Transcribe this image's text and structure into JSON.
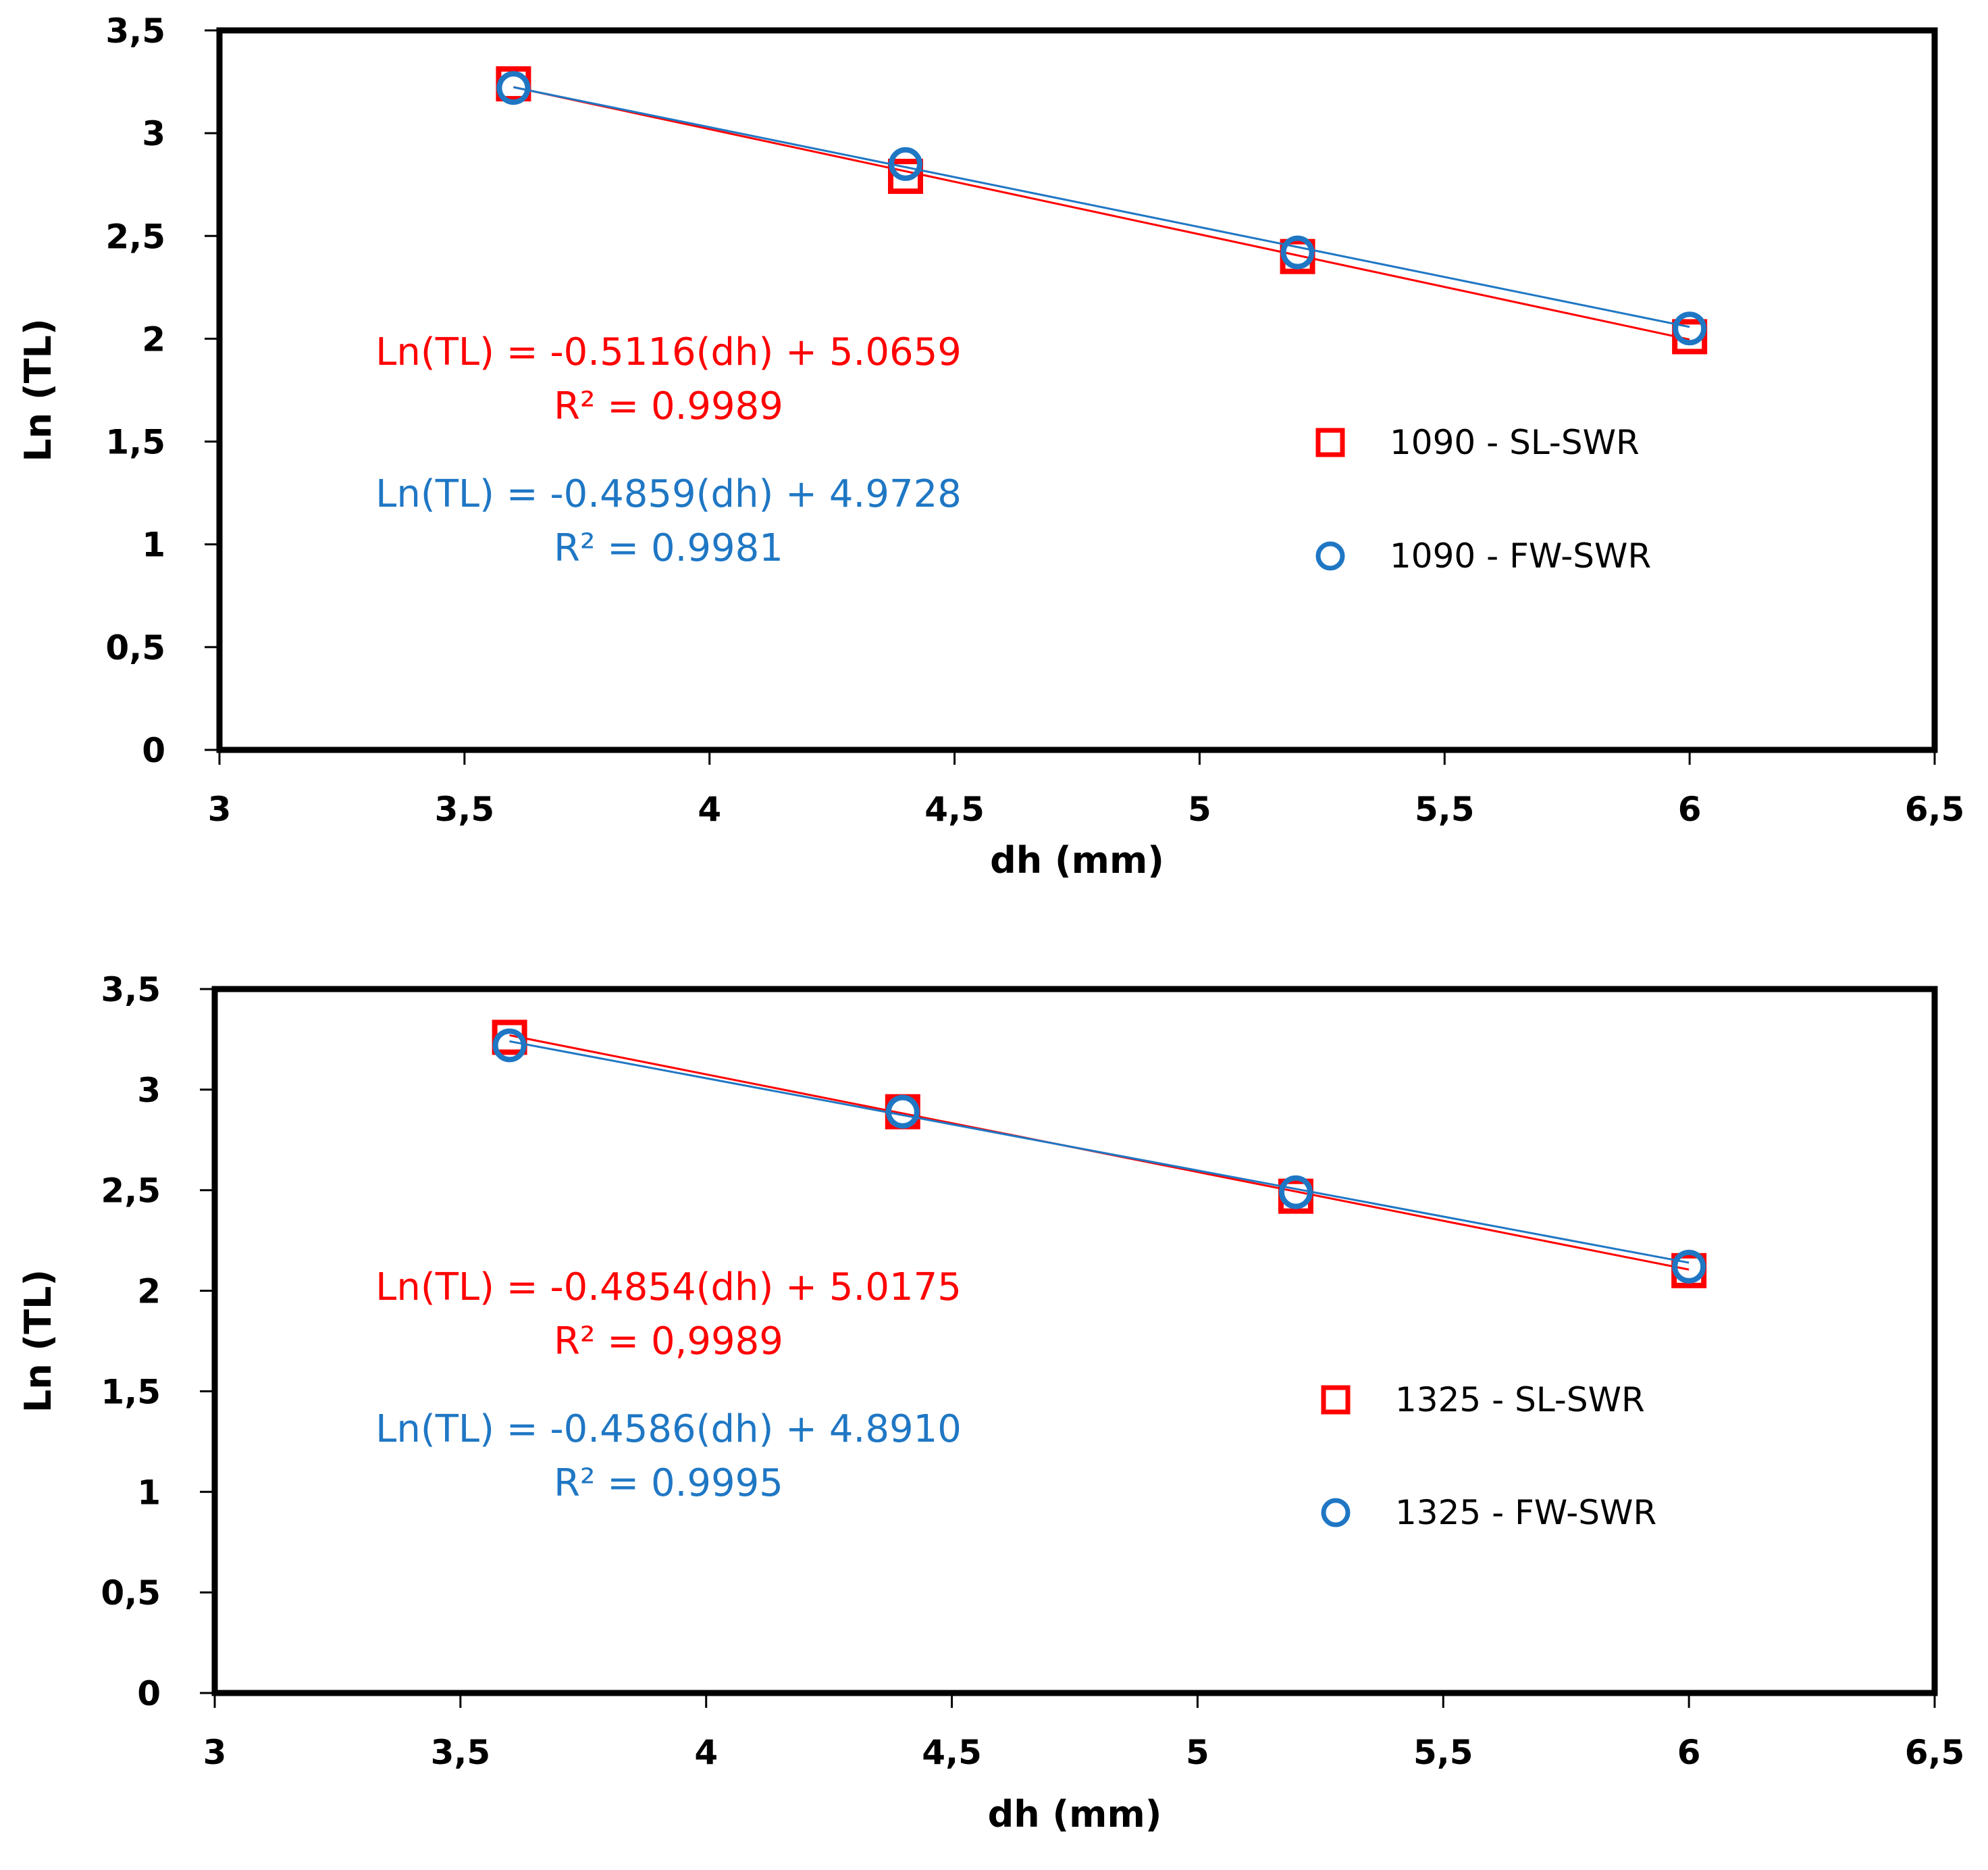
{
  "colors": {
    "sl": "#ff0000",
    "fw": "#1f77c4",
    "axis": "#000000"
  },
  "chart_data": [
    {
      "type": "scatter",
      "xlabel": "dh (mm)",
      "ylabel": "Ln (TL)",
      "xlim": [
        3,
        6.5
      ],
      "ylim": [
        0,
        3.5
      ],
      "x_ticks": [
        "3",
        "3,5",
        "4",
        "4,5",
        "5",
        "5,5",
        "6",
        "6,5"
      ],
      "y_ticks": [
        "0",
        "0,5",
        "1",
        "1,5",
        "2",
        "2,5",
        "3",
        "3,5"
      ],
      "x_tick_values": [
        3,
        3.5,
        4,
        4.5,
        5,
        5.5,
        6,
        6.5
      ],
      "y_tick_values": [
        0,
        0.5,
        1,
        1.5,
        2,
        2.5,
        3,
        3.5
      ],
      "series": [
        {
          "name": "1090 - SL-SWR",
          "marker": "square",
          "color": "#ff0000",
          "x": [
            3.6,
            4.4,
            5.2,
            6.0
          ],
          "y": [
            3.24,
            2.79,
            2.4,
            2.01
          ],
          "fit": {
            "slope": -0.5116,
            "intercept": 5.0659
          },
          "equation": "Ln(TL) = -0.5116(dh) + 5.0659",
          "r2": "R² = 0.9989"
        },
        {
          "name": "1090 - FW-SWR",
          "marker": "circle",
          "color": "#1f77c4",
          "x": [
            3.6,
            4.4,
            5.2,
            6.0
          ],
          "y": [
            3.22,
            2.85,
            2.42,
            2.05
          ],
          "fit": {
            "slope": -0.4859,
            "intercept": 4.9728
          },
          "equation": "Ln(TL) = -0.4859(dh) + 4.9728",
          "r2": "R² = 0.9981"
        }
      ]
    },
    {
      "type": "scatter",
      "xlabel": "dh (mm)",
      "ylabel": "Ln (TL)",
      "xlim": [
        3,
        6.5
      ],
      "ylim": [
        0,
        3.5
      ],
      "x_ticks": [
        "3",
        "3,5",
        "4",
        "4,5",
        "5",
        "5,5",
        "6",
        "6,5"
      ],
      "y_ticks": [
        "0",
        "0,5",
        "1",
        "1,5",
        "2",
        "2,5",
        "3",
        "3,5"
      ],
      "x_tick_values": [
        3,
        3.5,
        4,
        4.5,
        5,
        5.5,
        6,
        6.5
      ],
      "y_tick_values": [
        0,
        0.5,
        1,
        1.5,
        2,
        2.5,
        3,
        3.5
      ],
      "series": [
        {
          "name": "1325 - SL-SWR",
          "marker": "square",
          "color": "#ff0000",
          "x": [
            3.6,
            4.4,
            5.2,
            6.0
          ],
          "y": [
            3.26,
            2.89,
            2.47,
            2.1
          ],
          "fit": {
            "slope": -0.4854,
            "intercept": 5.0175
          },
          "equation": "Ln(TL) = -0.4854(dh) + 5.0175",
          "r2": "R² = 0,9989"
        },
        {
          "name": "1325 - FW-SWR",
          "marker": "circle",
          "color": "#1f77c4",
          "x": [
            3.6,
            4.4,
            5.2,
            6.0
          ],
          "y": [
            3.22,
            2.89,
            2.49,
            2.12
          ],
          "fit": {
            "slope": -0.4586,
            "intercept": 4.891
          },
          "equation": "Ln(TL) = -0.4586(dh) + 4.8910",
          "r2": "R² = 0.9995"
        }
      ]
    }
  ]
}
